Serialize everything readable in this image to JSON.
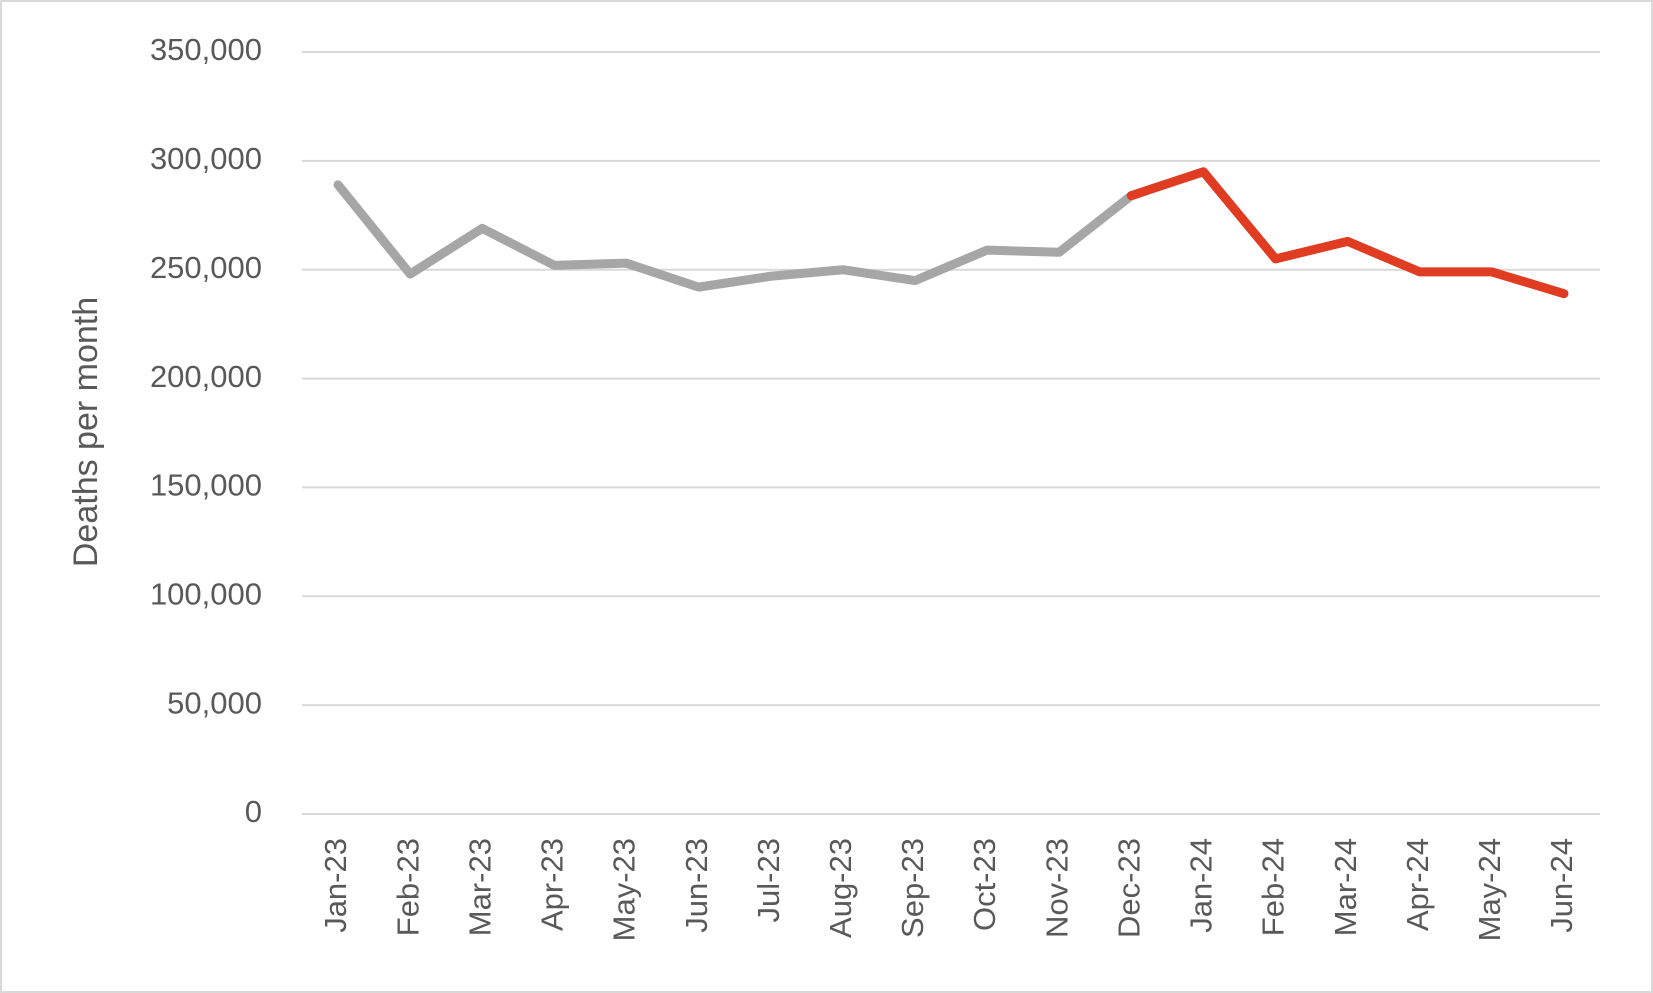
{
  "chart_data": {
    "type": "line",
    "y_label": "Deaths per month",
    "categories": [
      "Jan-23",
      "Feb-23",
      "Mar-23",
      "Apr-23",
      "May-23",
      "Jun-23",
      "Jul-23",
      "Aug-23",
      "Sep-23",
      "Oct-23",
      "Nov-23",
      "Dec-23",
      "Jan-24",
      "Feb-24",
      "Mar-24",
      "Apr-24",
      "May-24",
      "Jun-24"
    ],
    "series": [
      {
        "color": "#a6a6a6",
        "values": [
          289000,
          248000,
          269000,
          252000,
          253000,
          242000,
          247000,
          250000,
          245000,
          259000,
          258000,
          284000,
          null,
          null,
          null,
          null,
          null,
          null
        ]
      },
      {
        "color": "#e03c22",
        "values": [
          null,
          null,
          null,
          null,
          null,
          null,
          null,
          null,
          null,
          null,
          null,
          284000,
          295000,
          255000,
          263000,
          249000,
          249000,
          239000
        ]
      }
    ],
    "ylim": [
      0,
      350000
    ],
    "yticks": [
      0,
      {
        "value": 50000,
        "label": "50,000"
      },
      {
        "value": 100000,
        "label": "100,000"
      },
      {
        "value": 150000,
        "label": "150,000"
      },
      {
        "value": 200000,
        "label": "200,000"
      },
      {
        "value": 250000,
        "label": "250,000"
      },
      {
        "value": 300000,
        "label": "300,000"
      },
      {
        "value": 350000,
        "label": "350,000"
      }
    ],
    "grid": true
  }
}
